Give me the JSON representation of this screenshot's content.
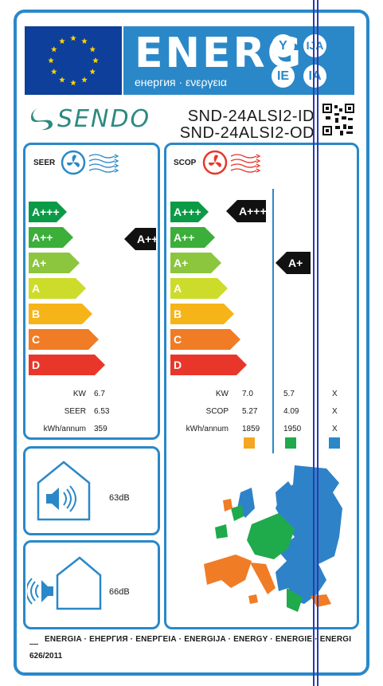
{
  "header": {
    "title": "ENERG",
    "subtitle": "енергия · ενεργεια",
    "languages": [
      "Y",
      "IJA",
      "IE",
      "IA"
    ]
  },
  "brand": {
    "name": "SENDO",
    "icon": "sendo-logo-icon"
  },
  "models": [
    "SND-24ALSI2-ID",
    "SND-24ALSI2-OD"
  ],
  "classes": [
    "A+++",
    "A++",
    "A+",
    "A",
    "B",
    "C",
    "D"
  ],
  "class_colors": [
    "#0b9a46",
    "#3cae3a",
    "#8cc63e",
    "#cddc2a",
    "#f7b418",
    "#f07c26",
    "#e8372a"
  ],
  "seer": {
    "title": "SEER",
    "icon": "fan-cooling-icon",
    "rating": "A++",
    "rows": [
      {
        "label": "KW",
        "value": "6.7"
      },
      {
        "label": "SEER",
        "value": "6.53"
      },
      {
        "label": "kWh/annum",
        "value": "359"
      }
    ]
  },
  "scop": {
    "title": "SCOP",
    "icon": "fan-heating-icon",
    "ratings": [
      "A+++",
      "A+"
    ],
    "row_labels": [
      "KW",
      "SCOP",
      "kWh/annum"
    ],
    "columns": [
      {
        "values": [
          "7.0",
          "5.27",
          "1859"
        ],
        "color": "#f5a623"
      },
      {
        "values": [
          "5.7",
          "4.09",
          "1950"
        ],
        "color": "#1faa4c"
      },
      {
        "values": [
          "X",
          "X",
          "X"
        ],
        "color": "#2a88c8"
      }
    ]
  },
  "sound": {
    "indoor": {
      "value": "63dB",
      "icon": "indoor-sound-icon"
    },
    "outdoor": {
      "value": "66dB",
      "icon": "outdoor-sound-icon"
    }
  },
  "footer": {
    "languages": "ENERGIA · ЕНЕРГИЯ · ΕΝΕΡΓΕΙΑ · ENERGIJA · ENERGY · ENERGIE · ENERGI",
    "regulation": "626/2011"
  }
}
